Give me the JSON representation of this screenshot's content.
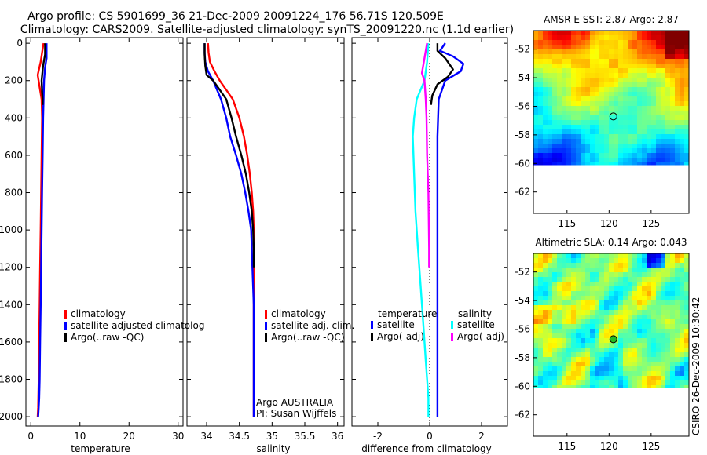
{
  "title": {
    "line1": "Argo profile: CS 5901699_36 21-Dec-2009 20091224_176 56.71S 120.509E",
    "line2": "Climatology: CARS2009. Satellite-adjusted climatology: synTS_20091220.nc (1.1d earlier)"
  },
  "side_label": "CSIRO 26-Dec-2009 10:30:42",
  "colors": {
    "climatology": "#ff0000",
    "satellite": "#0000ff",
    "argo": "#000000",
    "sal_sat": "#00ffff",
    "sal_argo": "#ff00ff",
    "marker": "#000000"
  },
  "chart_data": [
    {
      "id": "temperature",
      "type": "line",
      "xlabel": "temperature",
      "ylabel": "",
      "xlim": [
        -1,
        31
      ],
      "ylim": [
        2050,
        -30
      ],
      "xticks": [
        0,
        10,
        20,
        30
      ],
      "xtick_labels": [
        "0",
        "10",
        "20",
        "30"
      ],
      "yticks": [
        0,
        200,
        400,
        600,
        800,
        1000,
        1200,
        1400,
        1600,
        1800,
        2000
      ],
      "ytick_labels": [
        "0",
        "200",
        "400",
        "600",
        "800",
        "1000",
        "1200",
        "1400",
        "1600",
        "1800",
        "2000"
      ],
      "legend": [
        "climatology",
        "satellite-adjusted climatolog",
        "Argo(..raw -QC)"
      ],
      "series": [
        {
          "name": "climatology",
          "color": "#ff0000",
          "x": [
            2.6,
            2.3,
            2.0,
            1.4,
            1.7,
            2.2,
            2.3,
            2.2,
            2.1,
            2.0,
            1.9,
            1.8,
            1.7,
            1.6,
            1.5,
            1.4
          ],
          "y": [
            0,
            50,
            100,
            170,
            220,
            300,
            400,
            600,
            800,
            1000,
            1200,
            1400,
            1600,
            1800,
            1950,
            2000
          ]
        },
        {
          "name": "satellite-adjusted climatolog",
          "color": "#0000ff",
          "x": [
            3.2,
            3.2,
            2.9,
            2.7,
            2.6,
            2.5,
            2.4,
            2.3,
            2.2,
            2.1,
            2.0,
            1.9,
            1.8,
            1.7,
            1.6,
            1.5
          ],
          "y": [
            0,
            80,
            130,
            200,
            300,
            400,
            600,
            800,
            1000,
            1200,
            1400,
            1600,
            1800,
            1900,
            1950,
            2000
          ]
        },
        {
          "name": "Argo(..raw -QC)",
          "color": "#000000",
          "x": [
            2.9,
            2.9,
            2.5,
            2.2,
            2.3,
            2.4,
            2.4
          ],
          "y": [
            0,
            60,
            120,
            200,
            260,
            300,
            330
          ]
        }
      ]
    },
    {
      "id": "salinity",
      "type": "line",
      "xlabel": "salinity",
      "ylabel": "",
      "xlim": [
        33.7,
        36.1
      ],
      "ylim": [
        2050,
        -30
      ],
      "xticks": [
        34,
        34.5,
        35,
        35.5,
        36
      ],
      "xtick_labels": [
        "34",
        "34.5",
        "35",
        "35.5",
        "36"
      ],
      "legend": [
        "climatology",
        "satellite adj. clim.",
        "Argo(..raw -QC)"
      ],
      "annotation": [
        "Argo AUSTRALIA",
        "PI: Susan Wijffels"
      ],
      "series": [
        {
          "name": "climatology",
          "color": "#ff0000",
          "x": [
            34.02,
            34.03,
            34.05,
            34.12,
            34.2,
            34.3,
            34.4,
            34.5,
            34.57,
            34.62,
            34.66,
            34.69,
            34.71,
            34.72,
            34.72,
            34.72,
            34.72,
            34.72
          ],
          "y": [
            0,
            50,
            100,
            150,
            200,
            250,
            300,
            400,
            500,
            600,
            700,
            800,
            900,
            1000,
            1200,
            1400,
            1800,
            2000
          ]
        },
        {
          "name": "satellite adj. clim.",
          "color": "#0000ff",
          "x": [
            33.97,
            33.97,
            33.98,
            34.02,
            34.1,
            34.16,
            34.22,
            34.3,
            34.36,
            34.45,
            34.53,
            34.59,
            34.64,
            34.68,
            34.7,
            34.72,
            34.72,
            34.72
          ],
          "y": [
            0,
            50,
            100,
            150,
            200,
            250,
            300,
            400,
            500,
            600,
            700,
            800,
            900,
            1000,
            1200,
            1400,
            1800,
            2000
          ]
        },
        {
          "name": "Argo(..raw -QC)",
          "color": "#000000",
          "x": [
            33.97,
            33.97,
            33.98,
            34.0,
            34.1,
            34.2,
            34.3,
            34.38,
            34.45,
            34.53,
            34.6,
            34.65,
            34.69,
            34.71,
            34.72,
            34.72
          ],
          "y": [
            0,
            60,
            120,
            170,
            200,
            250,
            300,
            400,
            500,
            600,
            700,
            800,
            900,
            1000,
            1100,
            1200
          ]
        }
      ]
    },
    {
      "id": "difference",
      "type": "line",
      "xlabel": "difference from climatology",
      "ylabel": "",
      "xlim": [
        -3,
        3
      ],
      "ylim": [
        2050,
        -30
      ],
      "xticks": [
        -2,
        0,
        2
      ],
      "xtick_labels": [
        "-2",
        "0",
        "2"
      ],
      "legend_temperature": {
        "title": "temperature",
        "entries": [
          "satellite",
          "Argo(-adj)"
        ]
      },
      "legend_salinity": {
        "title": "salinity",
        "entries": [
          "satellite",
          "Argo(-adj)"
        ]
      },
      "series": [
        {
          "name": "temperature satellite",
          "color": "#0000ff",
          "x": [
            0.6,
            0.4,
            0.9,
            1.3,
            1.2,
            0.6,
            0.35,
            0.3,
            0.3,
            0.3,
            0.3,
            0.3,
            0.3,
            0.3
          ],
          "y": [
            0,
            40,
            70,
            110,
            150,
            200,
            300,
            500,
            800,
            1100,
            1400,
            1700,
            1900,
            2000
          ]
        },
        {
          "name": "temperature Argo(-adj)",
          "color": "#000000",
          "x": [
            0.3,
            0.3,
            0.6,
            0.9,
            0.7,
            0.3,
            0.1,
            0.05
          ],
          "y": [
            0,
            40,
            80,
            140,
            180,
            220,
            280,
            330
          ]
        },
        {
          "name": "salinity satellite",
          "color": "#00ffff",
          "x": [
            -0.05,
            -0.1,
            -0.2,
            -0.5,
            -0.6,
            -0.65,
            -0.6,
            -0.55,
            -0.45,
            -0.35,
            -0.25,
            -0.15,
            -0.1,
            -0.05,
            -0.05
          ],
          "y": [
            0,
            100,
            200,
            300,
            400,
            500,
            700,
            900,
            1100,
            1300,
            1500,
            1700,
            1800,
            1900,
            2000
          ]
        },
        {
          "name": "salinity Argo(-adj)",
          "color": "#ff00ff",
          "x": [
            -0.1,
            -0.3,
            -0.2,
            -0.15,
            -0.12,
            -0.1,
            -0.05,
            -0.03,
            -0.02,
            -0.02
          ],
          "y": [
            0,
            160,
            200,
            300,
            400,
            600,
            800,
            1000,
            1100,
            1200
          ]
        }
      ]
    }
  ],
  "maps": [
    {
      "id": "amsre-sst",
      "title": "AMSR-E SST: 2.87  Argo: 2.87",
      "xticks": [
        115,
        120,
        125
      ],
      "xtick_labels": [
        "115",
        "120",
        "125"
      ],
      "yticks": [
        -52,
        -54,
        -56,
        -58,
        -60,
        -62
      ],
      "ytick_labels": [
        "-52",
        "-54",
        "-56",
        "-58",
        "-60",
        "-62"
      ],
      "xlim": [
        111,
        129.5
      ],
      "ylim": [
        -63.5,
        -50.7
      ],
      "data_bottom": -60.1,
      "marker": {
        "lon": 120.509,
        "lat": -56.71,
        "fill": "none"
      },
      "colormap": "jet"
    },
    {
      "id": "altimetric-sla",
      "title": "Altimetric SLA: 0.14  Argo: 0.043",
      "xticks": [
        115,
        120,
        125
      ],
      "xtick_labels": [
        "115",
        "120",
        "125"
      ],
      "yticks": [
        -52,
        -54,
        -56,
        -58,
        -60,
        -62
      ],
      "ytick_labels": [
        "-52",
        "-54",
        "-56",
        "-58",
        "-60",
        "-62"
      ],
      "xlim": [
        111,
        129.5
      ],
      "ylim": [
        -63.5,
        -50.7
      ],
      "data_bottom": -60.1,
      "marker": {
        "lon": 120.509,
        "lat": -56.71,
        "fill": "#22bb22"
      },
      "colormap": "jet"
    }
  ]
}
